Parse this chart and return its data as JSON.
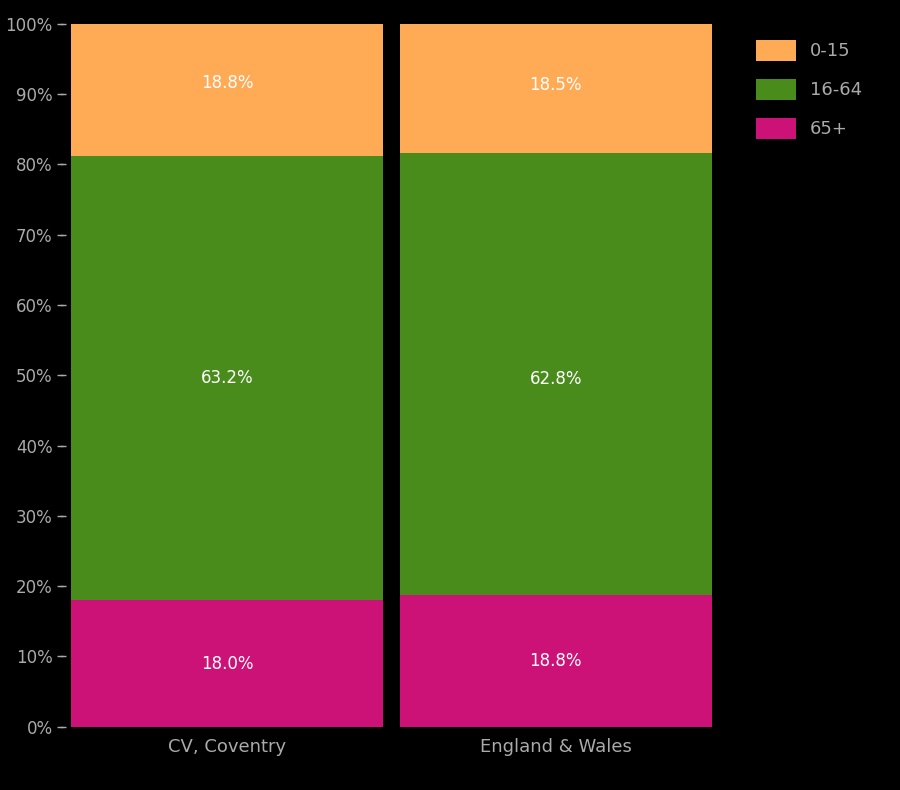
{
  "categories": [
    "CV, Coventry",
    "England & Wales"
  ],
  "segments": {
    "65+": [
      18.0,
      18.8
    ],
    "16-64": [
      63.2,
      62.8
    ],
    "0-15": [
      18.8,
      18.5
    ]
  },
  "colors": {
    "0-15": "#FFAA55",
    "16-64": "#4A8C1C",
    "65+": "#CC1177"
  },
  "segment_order": [
    "65+",
    "16-64",
    "0-15"
  ],
  "background_color": "#000000",
  "text_color": "#AAAAAA",
  "ylim": [
    0,
    100
  ],
  "yticks": [
    0,
    10,
    20,
    30,
    40,
    50,
    60,
    70,
    80,
    90,
    100
  ],
  "ytick_labels": [
    "0%",
    "10%",
    "20%",
    "30%",
    "40%",
    "50%",
    "60%",
    "70%",
    "80%",
    "90%",
    "100%"
  ],
  "legend_labels": [
    "0-15",
    "16-64",
    "65+"
  ],
  "legend_colors": [
    "#FFAA55",
    "#4A8C1C",
    "#CC1177"
  ],
  "label_positions": {
    "0-15": [
      91.6,
      91.25
    ],
    "16-64": [
      49.6,
      49.4
    ],
    "65+": [
      9.0,
      9.4
    ]
  },
  "bar_width": 0.95
}
